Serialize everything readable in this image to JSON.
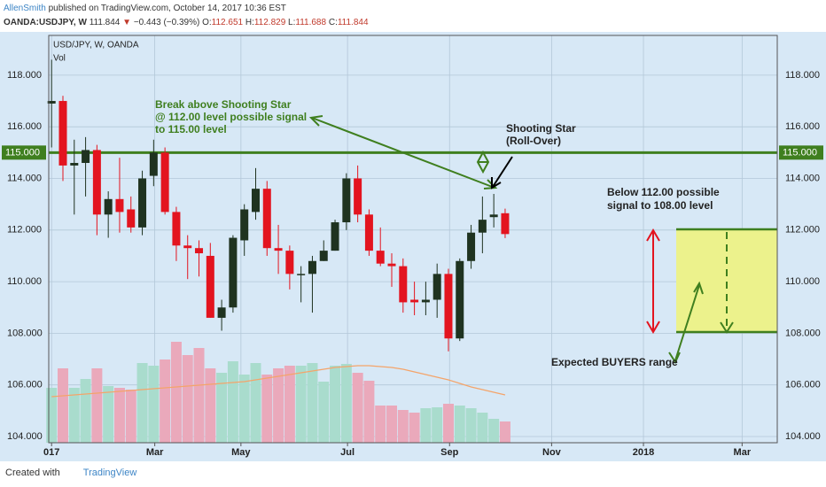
{
  "header": {
    "author": "AllenSmith",
    "published": "published on TradingView.com, October 14, 2017 10:36 EST",
    "symbol": "OANDA:USDJPY, W",
    "last": "111.844",
    "direction": "▼",
    "change": "−0.443 (−0.39%)",
    "o_label": "O:",
    "o": "112.651",
    "h_label": "H:",
    "h": "112.829",
    "l_label": "L:",
    "l": "111.688",
    "c_label": "C:",
    "c": "111.844"
  },
  "footer": {
    "created": "Created with",
    "brand": "TradingView"
  },
  "chart_data": {
    "type": "candlestick",
    "title": "USD/JPY, W, OANDA",
    "volume_label": "Vol",
    "open": [
      116.9,
      117.0,
      114.5,
      114.6,
      115.1,
      112.6,
      113.2,
      112.8,
      112.1,
      114.1,
      115.0,
      112.7,
      111.4,
      111.3,
      111.0,
      108.6,
      109.0,
      111.6,
      112.7,
      113.6,
      111.3,
      111.2,
      110.3,
      110.3,
      110.8,
      111.2,
      112.3,
      114.0,
      112.6,
      111.2,
      110.7,
      110.6,
      109.3,
      109.2,
      109.3,
      110.3,
      107.8,
      110.8,
      111.9,
      112.5,
      112.651
    ],
    "high": [
      118.6,
      117.2,
      115.5,
      115.6,
      115.3,
      113.5,
      114.8,
      113.3,
      114.3,
      115.5,
      115.2,
      112.9,
      111.8,
      111.6,
      111.5,
      109.3,
      111.8,
      113.0,
      114.4,
      113.9,
      112.2,
      111.4,
      110.6,
      111.0,
      111.6,
      112.4,
      114.2,
      114.5,
      112.8,
      112.1,
      111.1,
      110.9,
      110.0,
      110.0,
      110.7,
      110.5,
      110.9,
      112.2,
      113.3,
      113.4,
      112.829
    ],
    "low": [
      115.2,
      113.9,
      112.6,
      113.3,
      111.8,
      111.7,
      111.9,
      111.9,
      111.8,
      113.7,
      112.6,
      110.8,
      110.1,
      110.2,
      108.6,
      108.1,
      108.8,
      111.0,
      112.4,
      111.0,
      110.3,
      109.7,
      109.2,
      108.8,
      110.8,
      111.2,
      112.0,
      112.3,
      111.0,
      110.6,
      109.8,
      108.8,
      108.7,
      108.7,
      108.6,
      107.3,
      107.7,
      110.5,
      111.1,
      112.1,
      111.688
    ],
    "close": [
      117.0,
      114.5,
      114.6,
      115.1,
      112.6,
      113.2,
      112.7,
      112.1,
      114.0,
      115.0,
      112.7,
      111.4,
      111.3,
      111.1,
      108.6,
      109.0,
      111.7,
      112.8,
      113.6,
      111.3,
      111.2,
      110.3,
      110.3,
      110.8,
      111.2,
      112.3,
      114.0,
      112.6,
      111.2,
      110.7,
      110.6,
      109.2,
      109.2,
      109.3,
      110.3,
      107.8,
      110.8,
      111.9,
      112.4,
      112.6,
      111.844
    ],
    "volume": [
      62,
      84,
      62,
      72,
      84,
      64,
      62,
      60,
      90,
      87,
      94,
      114,
      99,
      107,
      84,
      79,
      92,
      77,
      90,
      77,
      84,
      87,
      87,
      90,
      69,
      87,
      89,
      79,
      70,
      42,
      42,
      37,
      34,
      39,
      40,
      44,
      42,
      39,
      34,
      27,
      24
    ],
    "volume_ma": [
      52,
      53,
      54,
      55,
      56,
      57,
      58,
      59,
      60,
      61,
      62,
      63,
      64,
      65,
      66,
      67,
      68,
      69,
      71,
      73,
      75,
      77,
      79,
      81,
      83,
      85,
      86,
      87,
      87,
      86,
      85,
      83,
      80,
      77,
      74,
      71,
      67,
      63,
      60,
      57,
      54
    ],
    "volume_ylim": [
      0,
      460
    ],
    "up_color": "#1f3320",
    "down_color": "#e3141f",
    "volume_up_color": "#a9dccd",
    "volume_down_color": "#eaa9bb",
    "ma_color": "#f4a46a",
    "xlim": [
      -0.25,
      64
    ],
    "xticks": [
      {
        "value": 0,
        "label": "017"
      },
      {
        "value": 9.1,
        "label": "Mar"
      },
      {
        "value": 16.7,
        "label": "May"
      },
      {
        "value": 26.1,
        "label": "Jul"
      },
      {
        "value": 35.1,
        "label": "Sep"
      },
      {
        "value": 44.1,
        "label": "Nov"
      },
      {
        "value": 52.2,
        "label": "2018"
      },
      {
        "value": 60.9,
        "label": "Mar"
      }
    ],
    "ylim": [
      103.76,
      119.54
    ],
    "yticks": [
      {
        "value": 104,
        "label": "104.000"
      },
      {
        "value": 106,
        "label": "106.000"
      },
      {
        "value": 108,
        "label": "108.000"
      },
      {
        "value": 110,
        "label": "110.000"
      },
      {
        "value": 112,
        "label": "112.000"
      },
      {
        "value": 114,
        "label": "114.000"
      },
      {
        "value": 116,
        "label": "116.000"
      },
      {
        "value": 118,
        "label": "118.000"
      }
    ],
    "grid": true,
    "level": {
      "value": 115,
      "label": "115.000",
      "color": "#3f7f1f"
    },
    "notes": {
      "break": [
        "Break above Shooting Star",
        "@ 112.00 level possible signal",
        "to 115.00 level"
      ],
      "star": [
        "Shooting Star",
        "(Roll-Over)"
      ],
      "below": [
        "Below 112.00 possible",
        "signal to 108.00 level"
      ],
      "buyers": "Expected BUYERS range"
    }
  }
}
